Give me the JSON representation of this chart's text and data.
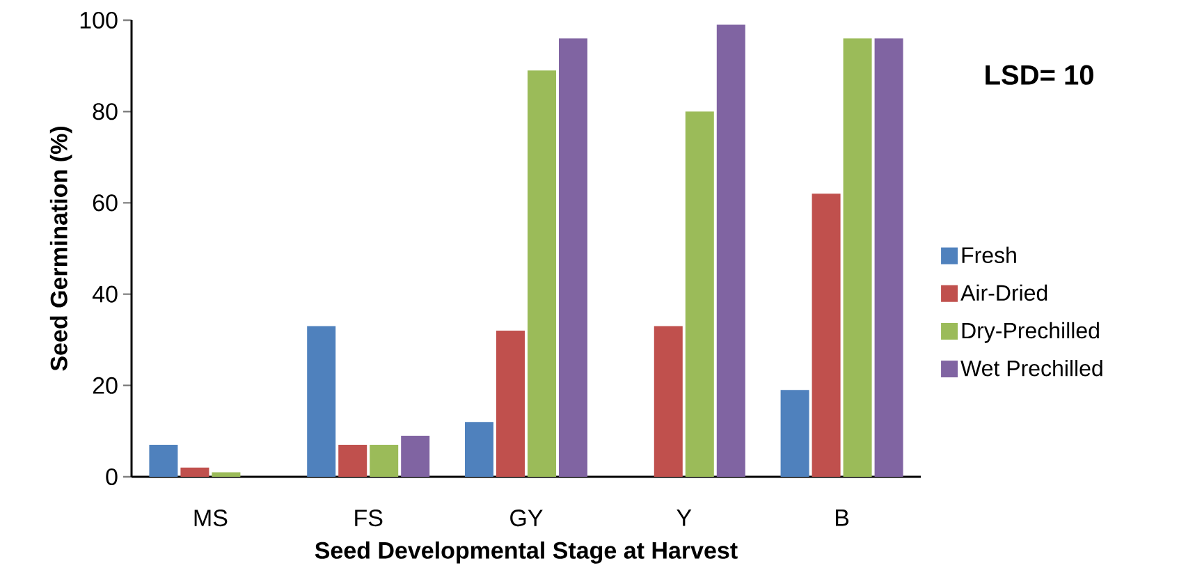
{
  "chart_data": {
    "type": "bar",
    "xlabel": "Seed Developmental Stage at Harvest",
    "ylabel": "Seed Germination (%)",
    "categories": [
      "MS",
      "FS",
      "GY",
      "Y",
      "B"
    ],
    "series": [
      {
        "name": "Fresh",
        "color": "#4f81bd",
        "values": [
          7,
          33,
          12,
          0,
          19
        ]
      },
      {
        "name": "Air-Dried",
        "color": "#c0504d",
        "values": [
          2,
          7,
          32,
          33,
          62
        ]
      },
      {
        "name": "Dry-Prechilled",
        "color": "#9bbb59",
        "values": [
          1,
          7,
          89,
          80,
          96
        ]
      },
      {
        "name": "Wet Prechilled",
        "color": "#8064a2",
        "values": [
          0,
          9,
          96,
          99,
          96
        ]
      }
    ],
    "ylim": [
      0,
      100
    ],
    "yticks": [
      0,
      20,
      40,
      60,
      80,
      100
    ],
    "grid": false,
    "legend": "right",
    "annotations": [
      "**LSD= 10**"
    ]
  }
}
